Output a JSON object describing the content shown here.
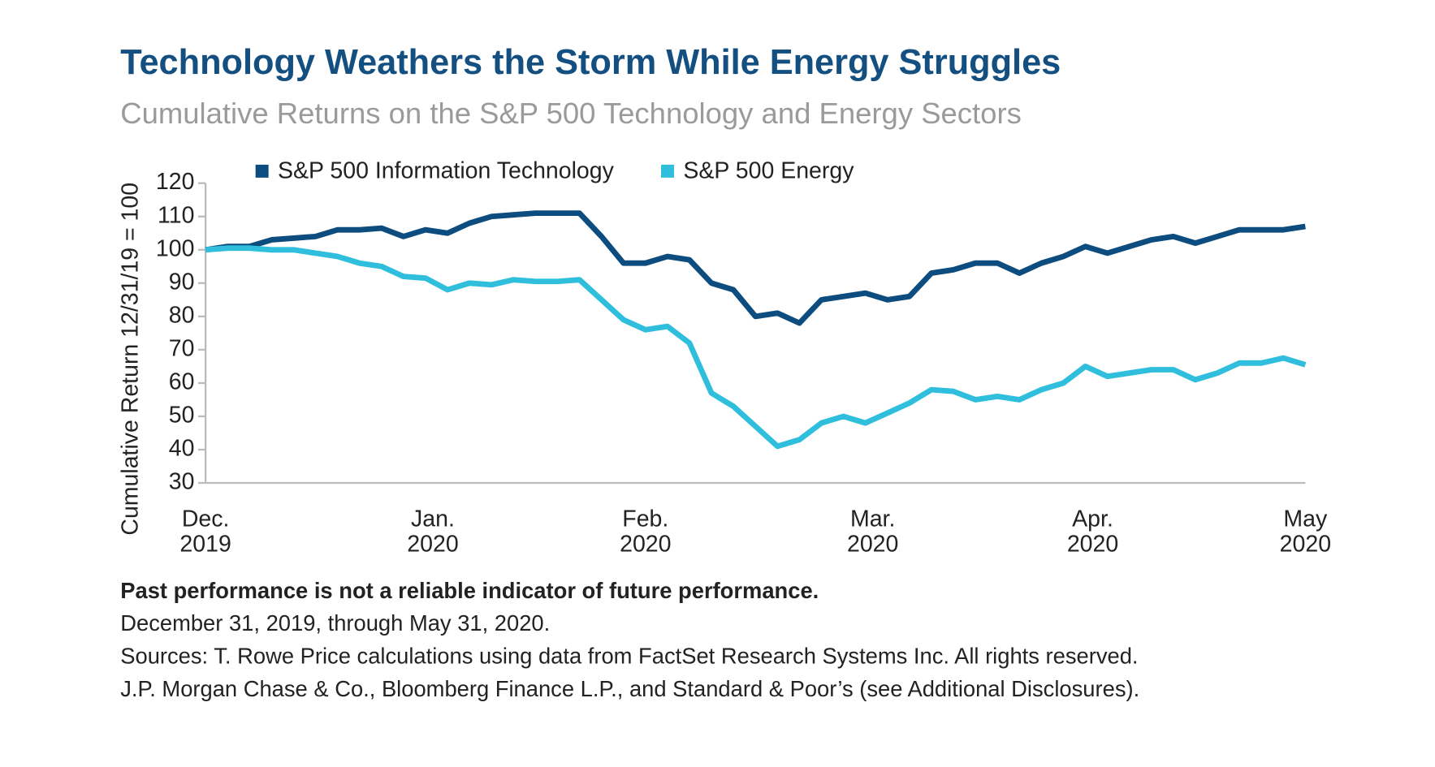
{
  "chart_data": {
    "type": "line",
    "title": "Technology Weathers the Storm While Energy Struggles",
    "subtitle": "Cumulative Returns on the S&P 500 Technology and Energy Sectors",
    "y_label": "Cumulative Return 12/31/19 = 100",
    "legend": "top",
    "x": [
      0,
      3,
      6,
      9,
      12,
      15,
      18,
      21,
      24,
      27,
      30,
      33,
      36,
      39,
      42,
      45,
      48,
      51,
      54,
      57,
      60,
      63,
      66,
      69,
      72,
      75,
      78,
      81,
      84,
      87,
      90,
      93,
      96,
      99,
      102,
      105,
      108,
      111,
      114,
      117,
      120,
      123,
      126,
      129,
      132,
      135,
      138,
      141,
      144,
      147,
      150
    ],
    "xlim": [
      0,
      150
    ],
    "xticks": [
      {
        "value": 0,
        "label": "Dec. 2019"
      },
      {
        "value": 31,
        "label": "Jan. 2020"
      },
      {
        "value": 60,
        "label": "Feb. 2020"
      },
      {
        "value": 91,
        "label": "Mar. 2020"
      },
      {
        "value": 121,
        "label": "Apr. 2020"
      },
      {
        "value": 150,
        "label": "May 2020"
      }
    ],
    "ylim": [
      30,
      120
    ],
    "yticks": [
      30,
      40,
      50,
      60,
      70,
      80,
      90,
      100,
      110,
      120
    ],
    "series": [
      {
        "name": "S&P 500 Information Technology",
        "color": "#0d4c7e",
        "values": [
          100,
          101,
          101,
          103,
          103.5,
          104,
          106,
          106,
          106.5,
          104,
          106,
          105,
          108,
          110,
          110.5,
          111,
          111,
          111,
          104,
          96,
          96,
          98,
          97,
          90,
          88,
          80,
          81,
          78,
          85,
          86,
          87,
          85,
          86,
          93,
          94,
          96,
          96,
          93,
          96,
          98,
          101,
          99,
          101,
          103,
          104,
          102,
          104,
          106,
          106,
          106,
          107
        ]
      },
      {
        "name": "S&P 500 Energy",
        "color": "#2fbfdd",
        "values": [
          100,
          100.5,
          100.5,
          100,
          100,
          99,
          98,
          96,
          95,
          92,
          91.5,
          88,
          90,
          89.5,
          91,
          90.5,
          90.5,
          91,
          85,
          79,
          76,
          77,
          72,
          57,
          53,
          47,
          41,
          43,
          48,
          50,
          48,
          51,
          54,
          58,
          57.5,
          55,
          56,
          55,
          58,
          60,
          65,
          62,
          63,
          64,
          64,
          61,
          63,
          66,
          66,
          67.5,
          65.5
        ]
      }
    ],
    "notes": [
      "Past performance is not a reliable indicator of future performance.",
      "December 31, 2019, through May 31, 2020.",
      "Sources: T. Rowe Price calculations using data from FactSet Research Systems Inc. All rights reserved.",
      "J.P. Morgan Chase & Co., Bloomberg Finance L.P., and Standard & Poor’s (see Additional Disclosures)."
    ]
  }
}
